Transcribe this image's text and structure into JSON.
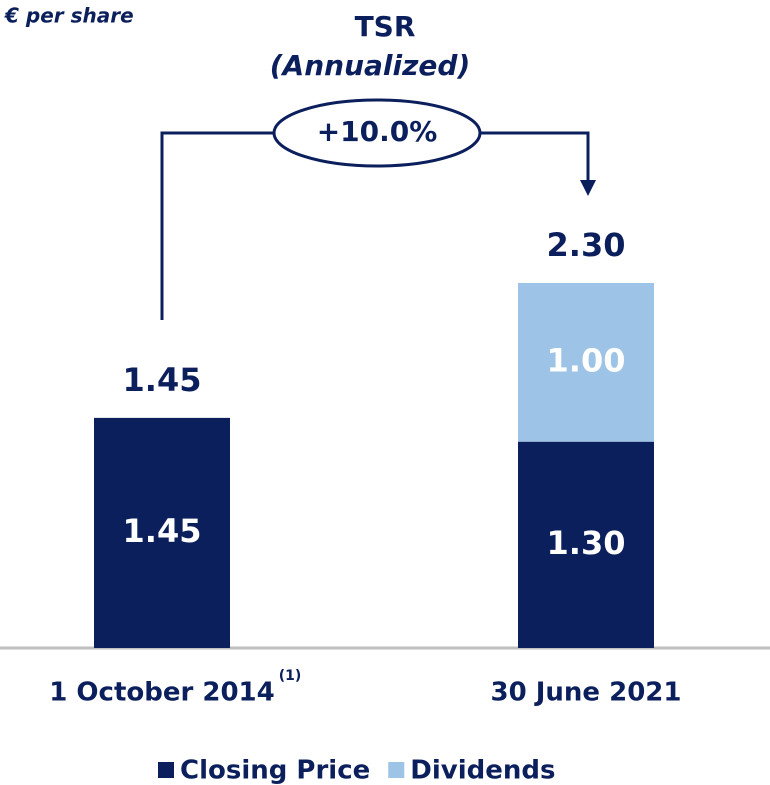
{
  "chart_data": {
    "type": "stacked_bar",
    "unit_label": "€ per share",
    "annotation": {
      "title": "TSR",
      "subtitle": "(Annualized)",
      "value": "+10.0%"
    },
    "categories": [
      "1 October 2014",
      "30 June 2021"
    ],
    "category_notes": [
      "(1)",
      null
    ],
    "series": [
      {
        "name": "Closing Price",
        "color": "#0b1f5c",
        "values": [
          1.45,
          1.3
        ],
        "value_labels": [
          "1.45",
          "1.30"
        ]
      },
      {
        "name": "Dividends",
        "color": "#9dc3e6",
        "values": [
          null,
          1
        ],
        "value_labels": [
          null,
          "1.00"
        ]
      }
    ],
    "totals": {
      "values": [
        1.45,
        2.3
      ],
      "value_labels": [
        "1.45",
        "2.30"
      ]
    }
  }
}
